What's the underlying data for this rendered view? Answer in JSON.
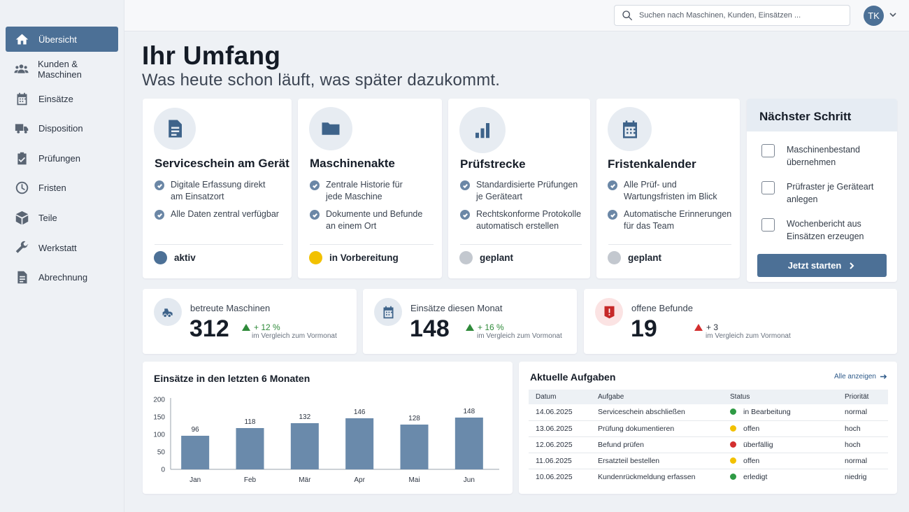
{
  "sidebar": {
    "items": [
      {
        "label": "Übersicht",
        "icon": "home-icon"
      },
      {
        "label": "Kunden & Maschinen",
        "icon": "users-icon"
      },
      {
        "label": "Einsätze",
        "icon": "calendar-icon"
      },
      {
        "label": "Disposition",
        "icon": "truck-icon"
      },
      {
        "label": "Prüfungen",
        "icon": "clipboard-check-icon"
      },
      {
        "label": "Fristen",
        "icon": "clock-icon"
      },
      {
        "label": "Teile",
        "icon": "box-icon"
      },
      {
        "label": "Werkstatt",
        "icon": "wrench-icon"
      },
      {
        "label": "Abrechnung",
        "icon": "document-icon"
      }
    ]
  },
  "topbar": {
    "search_placeholder": "Suchen nach Maschinen, Kunden, Einsätzen ...",
    "avatar_initials": "TK"
  },
  "header": {
    "title": "Ihr Umfang",
    "subtitle": "Was heute schon läuft, was später dazukommt."
  },
  "features": [
    {
      "title": "Serviceschein am Gerät",
      "icon": "document-icon",
      "points": [
        "Digitale Erfassung direkt am Einsatzort",
        "Alle Daten zentral verfügbar"
      ],
      "status": "aktiv",
      "status_color": "#4c7096"
    },
    {
      "title": "Maschinenakte",
      "icon": "folder-icon",
      "points": [
        "Zentrale Historie für jede Maschine",
        "Dokumente und Befunde an einem Ort"
      ],
      "status": "in Vorbereitung",
      "status_color": "#f2c100"
    },
    {
      "title": "Prüfstrecke",
      "icon": "bar-chart-icon",
      "points": [
        "Standardisierte Prüfungen je Geräteart",
        "Rechtskonforme Protokolle automatisch erstellen"
      ],
      "status": "geplant",
      "status_color": "#c3c8cf"
    },
    {
      "title": "Fristenkalender",
      "icon": "calendar-icon",
      "points": [
        "Alle Prüf- und Wartungsfristen im Blick",
        "Automatische Erinnerungen für das Team"
      ],
      "status": "geplant",
      "status_color": "#c3c8cf"
    }
  ],
  "next_step": {
    "title": "Nächster Schritt",
    "items": [
      "Maschinenbestand übernehmen",
      "Prüfraster je Geräteart anlegen",
      "Wochenbericht aus Einsätzen erzeugen"
    ],
    "button": "Jetzt starten"
  },
  "kpis": [
    {
      "label": "betreute Maschinen",
      "value": "312",
      "trend": "+ 12 %",
      "sub": "im Vergleich zum Vormonat",
      "icon": "machine-icon"
    },
    {
      "label": "Einsätze diesen Monat",
      "value": "148",
      "trend": "+ 16 %",
      "sub": "im Vergleich zum Vormonat",
      "icon": "calendar-icon"
    },
    {
      "label": "offene Befunde",
      "value": "19",
      "trend": "+ 3",
      "sub": "im Vergleich zum Vormonat",
      "icon": "alert-icon"
    }
  ],
  "chart_data": {
    "type": "bar",
    "title": "Einsätze in den letzten 6 Monaten",
    "categories": [
      "Jan",
      "Feb",
      "Mär",
      "Apr",
      "Mai",
      "Jun"
    ],
    "values": [
      96,
      118,
      132,
      146,
      128,
      148
    ],
    "yticks": [
      0,
      50,
      100,
      150,
      200
    ],
    "ylim": [
      0,
      200
    ],
    "bar_color": "#6a8aab",
    "grid": false
  },
  "tasks": {
    "title": "Aktuelle Aufgaben",
    "show_all": "Alle anzeigen",
    "columns": [
      "Datum",
      "Aufgabe",
      "Status",
      "Priorität"
    ],
    "rows": [
      {
        "date": "14.06.2025",
        "task": "Serviceschein abschließen",
        "status": "in Bearbeitung",
        "status_color": "#2e9a44",
        "priority": "normal"
      },
      {
        "date": "13.06.2025",
        "task": "Prüfung dokumentieren",
        "status": "offen",
        "status_color": "#f2c100",
        "priority": "hoch"
      },
      {
        "date": "12.06.2025",
        "task": "Befund prüfen",
        "status": "überfällig",
        "status_color": "#d32f2f",
        "priority": "hoch"
      },
      {
        "date": "11.06.2025",
        "task": "Ersatzteil bestellen",
        "status": "offen",
        "status_color": "#f2c100",
        "priority": "normal"
      },
      {
        "date": "10.06.2025",
        "task": "Kundenrückmeldung erfassen",
        "status": "erledigt",
        "status_color": "#2e9a44",
        "priority": "niedrig"
      }
    ]
  }
}
